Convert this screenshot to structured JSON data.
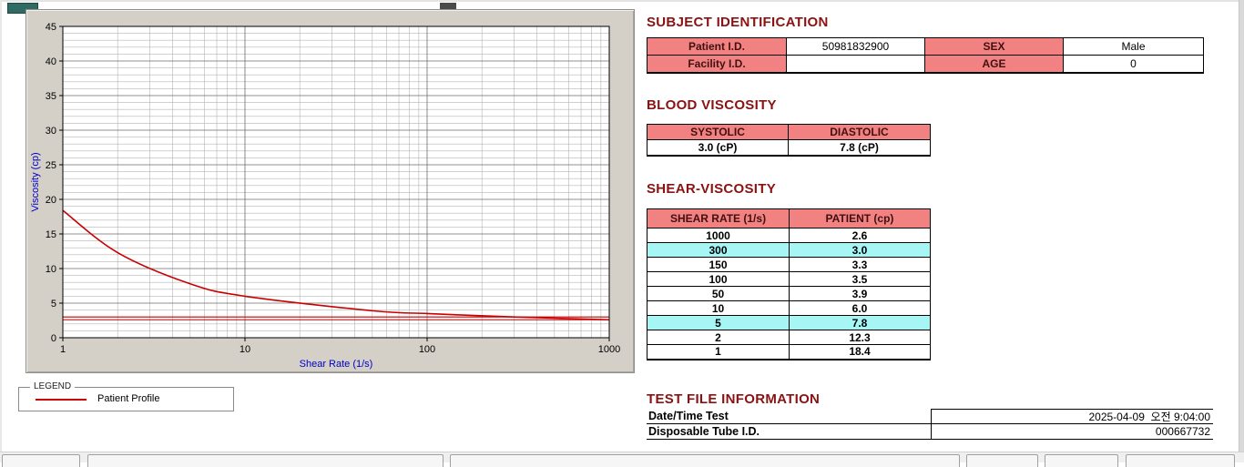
{
  "legend": {
    "title": "LEGEND",
    "series_label": "Patient Profile"
  },
  "chart_data": {
    "type": "line",
    "x": [
      1,
      2,
      5,
      10,
      50,
      100,
      150,
      300,
      1000
    ],
    "series": [
      {
        "name": "Patient Profile",
        "values": [
          18.4,
          12.3,
          7.8,
          6.0,
          3.9,
          3.5,
          3.3,
          3.0,
          2.6
        ]
      }
    ],
    "title": "",
    "xlabel": "Shear Rate (1/s)",
    "ylabel": "Viscosity (cp)",
    "xscale": "log",
    "xlim": [
      1,
      1000
    ],
    "ylim": [
      0,
      45
    ],
    "xticks": [
      1,
      10,
      100,
      1000
    ],
    "yticks": [
      0,
      5,
      10,
      15,
      20,
      25,
      30,
      35,
      40,
      45
    ],
    "reference_lines": [
      2.6,
      3.0
    ],
    "grid": true,
    "line_color": "#c80000",
    "axis_label_color": "#0000c8",
    "legend_position": "below"
  },
  "subject_identification": {
    "heading": "SUBJECT IDENTIFICATION",
    "rows": [
      {
        "label1": "Patient I.D.",
        "value1": "50981832900",
        "label2": "SEX",
        "value2": "Male"
      },
      {
        "label1": "Facility I.D.",
        "value1": "",
        "label2": "AGE",
        "value2": "0"
      }
    ]
  },
  "blood_viscosity": {
    "heading": "BLOOD VISCOSITY",
    "columns": [
      "SYSTOLIC",
      "DIASTOLIC"
    ],
    "values": [
      "3.0 (cP)",
      "7.8 (cP)"
    ]
  },
  "shear_viscosity": {
    "heading": "SHEAR-VISCOSITY",
    "columns": [
      "SHEAR RATE (1/s)",
      "PATIENT (cp)"
    ],
    "rows": [
      {
        "rate": "1000",
        "value": "2.6",
        "highlight": false
      },
      {
        "rate": "300",
        "value": "3.0",
        "highlight": true
      },
      {
        "rate": "150",
        "value": "3.3",
        "highlight": false
      },
      {
        "rate": "100",
        "value": "3.5",
        "highlight": false
      },
      {
        "rate": "50",
        "value": "3.9",
        "highlight": false
      },
      {
        "rate": "10",
        "value": "6.0",
        "highlight": false
      },
      {
        "rate": "5",
        "value": "7.8",
        "highlight": true
      },
      {
        "rate": "2",
        "value": "12.3",
        "highlight": false
      },
      {
        "rate": "1",
        "value": "18.4",
        "highlight": false
      }
    ]
  },
  "test_file_information": {
    "heading": "TEST FILE INFORMATION",
    "rows": [
      {
        "label": "Date/Time Test",
        "value": "2025-04-09  오전 9:04:00"
      },
      {
        "label": "Disposable Tube I.D.",
        "value": "000667732"
      }
    ]
  },
  "colors": {
    "heading": "#8a1212",
    "table_header_bg": "#f28282",
    "highlight_bg": "#a6f6f6",
    "curve": "#c80000",
    "axis_labels": "#0000c8",
    "panel_bg": "#d4d0c8"
  }
}
